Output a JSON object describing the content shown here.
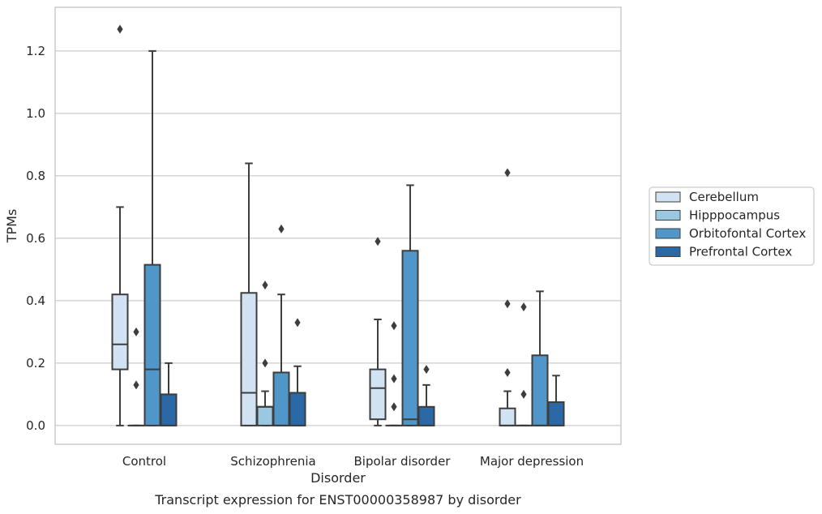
{
  "caption": "Transcript expression for ENST00000358987 by disorder",
  "chart_data": {
    "type": "boxplot",
    "title": "",
    "xlabel": "Disorder",
    "ylabel": "TPMs",
    "ylim": [
      -0.06,
      1.34
    ],
    "yticks": [
      0.0,
      0.2,
      0.4,
      0.6,
      0.8,
      1.0,
      1.2
    ],
    "ytick_labels": [
      "0.0",
      "0.2",
      "0.4",
      "0.6",
      "0.8",
      "1.0",
      "1.2"
    ],
    "grid": "horizontal",
    "legend_position": "right",
    "categories": [
      "Control",
      "Schizophrenia",
      "Bipolar disorder",
      "Major depression"
    ],
    "series": [
      {
        "name": "Cerebellum",
        "color": "#d1e2f2",
        "boxes": [
          {
            "whislo": 0.0,
            "q1": 0.18,
            "med": 0.26,
            "q3": 0.42,
            "whishi": 0.7,
            "fliers": [
              1.27
            ]
          },
          {
            "whislo": 0.0,
            "q1": 0.0,
            "med": 0.105,
            "q3": 0.425,
            "whishi": 0.84,
            "fliers": []
          },
          {
            "whislo": 0.0,
            "q1": 0.02,
            "med": 0.12,
            "q3": 0.18,
            "whishi": 0.34,
            "fliers": [
              0.59
            ]
          },
          {
            "whislo": 0.0,
            "q1": 0.0,
            "med": 0.0,
            "q3": 0.055,
            "whishi": 0.11,
            "fliers": [
              0.17,
              0.39,
              0.81
            ]
          }
        ]
      },
      {
        "name": "Hipppocampus",
        "color": "#9ac8e0",
        "boxes": [
          {
            "whislo": 0.0,
            "q1": 0.0,
            "med": 0.0,
            "q3": 0.0,
            "whishi": 0.0,
            "fliers": [
              0.13,
              0.3
            ]
          },
          {
            "whislo": 0.0,
            "q1": 0.0,
            "med": 0.06,
            "q3": 0.06,
            "whishi": 0.11,
            "fliers": [
              0.2,
              0.45
            ]
          },
          {
            "whislo": 0.0,
            "q1": 0.0,
            "med": 0.0,
            "q3": 0.0,
            "whishi": 0.0,
            "fliers": [
              0.06,
              0.15,
              0.32
            ]
          },
          {
            "whislo": 0.0,
            "q1": 0.0,
            "med": 0.0,
            "q3": 0.0,
            "whishi": 0.0,
            "fliers": [
              0.1,
              0.38
            ]
          }
        ]
      },
      {
        "name": "Orbitofontal Cortex",
        "color": "#5096c8",
        "boxes": [
          {
            "whislo": 0.0,
            "q1": 0.0,
            "med": 0.18,
            "q3": 0.515,
            "whishi": 1.2,
            "fliers": []
          },
          {
            "whislo": 0.0,
            "q1": 0.0,
            "med": 0.0,
            "q3": 0.17,
            "whishi": 0.42,
            "fliers": [
              0.63
            ]
          },
          {
            "whislo": 0.0,
            "q1": 0.0,
            "med": 0.02,
            "q3": 0.56,
            "whishi": 0.77,
            "fliers": []
          },
          {
            "whislo": 0.0,
            "q1": 0.0,
            "med": 0.0,
            "q3": 0.225,
            "whishi": 0.43,
            "fliers": []
          }
        ]
      },
      {
        "name": "Prefrontal Cortex",
        "color": "#2a68a6",
        "boxes": [
          {
            "whislo": 0.0,
            "q1": 0.0,
            "med": 0.0,
            "q3": 0.1,
            "whishi": 0.2,
            "fliers": []
          },
          {
            "whislo": 0.0,
            "q1": 0.0,
            "med": 0.0,
            "q3": 0.105,
            "whishi": 0.19,
            "fliers": [
              0.33
            ]
          },
          {
            "whislo": 0.0,
            "q1": 0.0,
            "med": 0.0,
            "q3": 0.06,
            "whishi": 0.13,
            "fliers": [
              0.18
            ]
          },
          {
            "whislo": 0.0,
            "q1": 0.0,
            "med": 0.0,
            "q3": 0.075,
            "whishi": 0.16,
            "fliers": []
          }
        ]
      }
    ]
  }
}
